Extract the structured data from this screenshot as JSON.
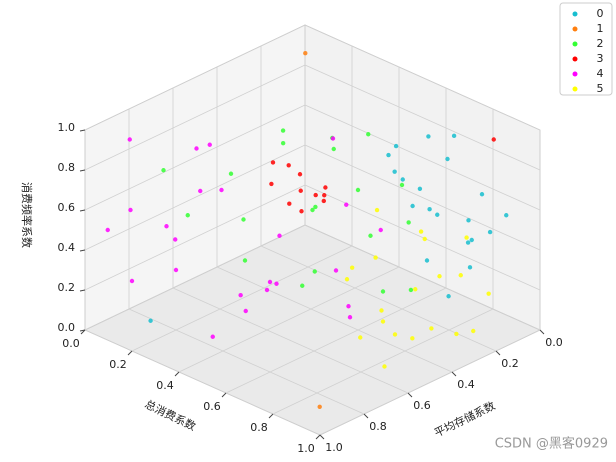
{
  "chart_data": {
    "type": "scatter3d",
    "xlabel": "平均存储系数",
    "ylabel": "总消费系数",
    "zlabel": "消费频率系数",
    "watermark": "CSDN @黑客0929",
    "xlim": [
      0,
      1
    ],
    "ylim": [
      0,
      1
    ],
    "zlim": [
      0,
      1
    ],
    "xticks": [
      {
        "value": 0,
        "label": "0.0"
      },
      {
        "value": 0.2,
        "label": "0.2"
      },
      {
        "value": 0.4,
        "label": "0.4"
      },
      {
        "value": 0.6,
        "label": "0.6"
      },
      {
        "value": 0.8,
        "label": "0.8"
      },
      {
        "value": 1,
        "label": "1.0"
      }
    ],
    "yticks": [
      {
        "value": 0,
        "label": "0.0"
      },
      {
        "value": 0.2,
        "label": "0.2"
      },
      {
        "value": 0.4,
        "label": "0.4"
      },
      {
        "value": 0.6,
        "label": "0.6"
      },
      {
        "value": 0.8,
        "label": "0.8"
      },
      {
        "value": 1,
        "label": "1.0"
      }
    ],
    "zticks": [
      {
        "value": 0,
        "label": "0.0"
      },
      {
        "value": 0.2,
        "label": "0.2"
      },
      {
        "value": 0.4,
        "label": "0.4"
      },
      {
        "value": 0.6,
        "label": "0.6"
      },
      {
        "value": 0.8,
        "label": "0.8"
      },
      {
        "value": 1,
        "label": "1.0"
      }
    ],
    "grid": true,
    "legend": "upper right",
    "series": [
      {
        "name": "0",
        "color": "#17becf",
        "x": [
          0.05,
          0.1,
          0.12,
          0.08,
          0.2,
          0.15,
          0.25,
          0.18,
          0.1,
          0.3,
          0.07,
          0.22,
          0.14,
          0.28,
          0.12,
          0.19,
          0.09,
          0.24,
          0.16,
          0.33,
          0.83
        ],
        "y": [
          0.8,
          0.7,
          0.9,
          0.6,
          0.75,
          0.85,
          0.65,
          0.55,
          0.95,
          0.8,
          0.7,
          0.9,
          0.62,
          0.72,
          0.5,
          0.88,
          0.78,
          0.58,
          0.68,
          0.92,
          0.12
        ],
        "z": [
          0.6,
          0.75,
          0.5,
          0.8,
          0.55,
          0.45,
          0.7,
          0.65,
          0.6,
          0.4,
          0.85,
          0.5,
          0.58,
          0.62,
          0.72,
          0.35,
          0.48,
          0.78,
          0.52,
          0.3,
          0.02
        ]
      },
      {
        "name": "1",
        "color": "#ff7f0e",
        "x": [
          0.02,
          0.98
        ],
        "y": [
          0.02,
          0.98
        ],
        "z": [
          0.88,
          0.12
        ]
      },
      {
        "name": "2",
        "color": "#33ff33",
        "x": [
          0.5,
          0.4,
          0.6,
          0.35,
          0.7,
          0.45,
          0.3,
          0.55,
          0.65,
          0.25,
          0.8,
          0.5,
          0.38,
          0.42,
          0.6,
          0.2,
          0.75,
          0.48,
          0.33,
          0.58
        ],
        "y": [
          0.5,
          0.6,
          0.3,
          0.45,
          0.4,
          0.7,
          0.55,
          0.2,
          0.65,
          0.35,
          0.25,
          0.8,
          0.4,
          0.3,
          0.55,
          0.6,
          0.1,
          0.9,
          0.75,
          0.45
        ],
        "z": [
          0.6,
          0.7,
          0.5,
          0.8,
          0.4,
          0.55,
          0.9,
          0.65,
          0.45,
          0.75,
          0.6,
          0.35,
          0.5,
          0.85,
          0.3,
          0.62,
          0.72,
          0.4,
          0.58,
          0.95
        ]
      },
      {
        "name": "3",
        "color": "#ff0000",
        "x": [
          0.5,
          0.45,
          0.55,
          0.48,
          0.52,
          0.42,
          0.58,
          0.47,
          0.53,
          0.4,
          0.5,
          0.05
        ],
        "y": [
          0.45,
          0.4,
          0.5,
          0.38,
          0.42,
          0.48,
          0.4,
          0.52,
          0.36,
          0.42,
          0.55,
          0.85
        ],
        "z": [
          0.67,
          0.7,
          0.62,
          0.75,
          0.6,
          0.66,
          0.72,
          0.64,
          0.78,
          0.58,
          0.7,
          0.9
        ]
      },
      {
        "name": "4",
        "color": "#ff00ff",
        "x": [
          0.9,
          0.8,
          0.7,
          0.95,
          0.6,
          0.85,
          0.75,
          0.65,
          0.5,
          0.9,
          0.55,
          0.4,
          0.7,
          1.0,
          0.8,
          0.6,
          0.45,
          0.85,
          0.35,
          0.95,
          0.65,
          0.75,
          0.3,
          0.88
        ],
        "y": [
          0.1,
          0.2,
          0.3,
          0.05,
          0.4,
          0.35,
          0.15,
          0.5,
          0.6,
          0.45,
          0.7,
          0.55,
          0.25,
          0.2,
          0.6,
          0.1,
          0.3,
          0.05,
          0.65,
          0.3,
          0.8,
          0.45,
          0.4,
          0.55
        ],
        "z": [
          0.6,
          0.3,
          0.7,
          0.5,
          0.2,
          0.8,
          0.4,
          0.55,
          0.35,
          0.15,
          0.25,
          0.6,
          0.9,
          0.35,
          0.45,
          0.75,
          0.1,
          0.9,
          0.5,
          0.65,
          0.3,
          0.2,
          0.8,
          0.4
        ]
      },
      {
        "name": "5",
        "color": "#ffff00",
        "x": [
          0.3,
          0.2,
          0.4,
          0.25,
          0.5,
          0.35,
          0.15,
          0.45,
          0.28,
          0.55,
          0.22,
          0.38,
          0.6,
          0.18,
          0.32,
          0.42,
          0.26,
          0.48,
          0.12,
          0.36
        ],
        "y": [
          0.75,
          0.85,
          0.7,
          0.95,
          0.8,
          0.9,
          0.65,
          0.6,
          0.8,
          0.75,
          0.7,
          1.0,
          0.9,
          0.95,
          0.6,
          0.85,
          0.55,
          0.65,
          0.8,
          0.72
        ],
        "z": [
          0.23,
          0.3,
          0.15,
          0.1,
          0.2,
          0.4,
          0.35,
          0.28,
          0.05,
          0.12,
          0.45,
          0.18,
          0.08,
          0.25,
          0.32,
          0.1,
          0.5,
          0.38,
          0.42,
          0.02
        ]
      }
    ]
  }
}
